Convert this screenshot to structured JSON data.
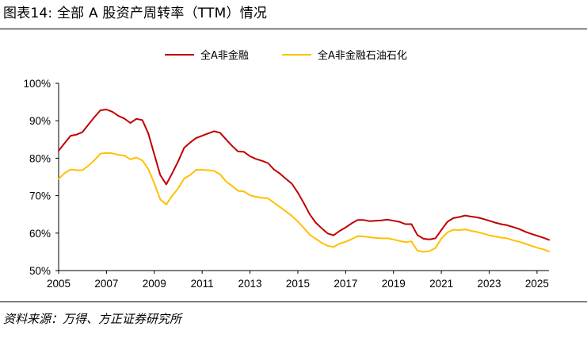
{
  "figure": {
    "title": "图表14: 全部 A 股资产周转率（TTM）情况",
    "source": "资料来源：万得、方正证券研究所"
  },
  "chart_data": {
    "type": "line",
    "title": "",
    "xlabel": "",
    "ylabel": "",
    "xlim": [
      2005,
      2025.5
    ],
    "ylim": [
      50,
      100
    ],
    "y_ticks": [
      "50%",
      "60%",
      "70%",
      "80%",
      "90%",
      "100%"
    ],
    "x_ticks": [
      "2005",
      "2007",
      "2009",
      "2011",
      "2013",
      "2015",
      "2017",
      "2019",
      "2021",
      "2023",
      "2025"
    ],
    "grid": false,
    "legend_position": "top-center",
    "series": [
      {
        "name": "全A非金融",
        "color": "#C00000",
        "x": [
          2005.0,
          2005.25,
          2005.5,
          2005.75,
          2006.0,
          2006.25,
          2006.5,
          2006.75,
          2007.0,
          2007.25,
          2007.5,
          2007.75,
          2008.0,
          2008.25,
          2008.5,
          2008.75,
          2009.0,
          2009.25,
          2009.5,
          2009.75,
          2010.0,
          2010.25,
          2010.5,
          2010.75,
          2011.0,
          2011.25,
          2011.5,
          2011.75,
          2012.0,
          2012.25,
          2012.5,
          2012.75,
          2013.0,
          2013.25,
          2013.5,
          2013.75,
          2014.0,
          2014.25,
          2014.5,
          2014.75,
          2015.0,
          2015.25,
          2015.5,
          2015.75,
          2016.0,
          2016.25,
          2016.5,
          2016.75,
          2017.0,
          2017.25,
          2017.5,
          2017.75,
          2018.0,
          2018.25,
          2018.5,
          2018.75,
          2019.0,
          2019.25,
          2019.5,
          2019.75,
          2020.0,
          2020.25,
          2020.5,
          2020.75,
          2021.0,
          2021.25,
          2021.5,
          2021.75,
          2022.0,
          2022.25,
          2022.5,
          2022.75,
          2023.0,
          2023.25,
          2023.5,
          2023.75,
          2024.0,
          2024.25,
          2024.5,
          2024.75,
          2025.0,
          2025.25,
          2025.5
        ],
        "values": [
          82.0,
          84.0,
          86.0,
          86.3,
          87.0,
          89.0,
          91.0,
          92.8,
          93.0,
          92.4,
          91.3,
          90.6,
          89.4,
          90.5,
          90.2,
          86.6,
          81.0,
          75.5,
          73.0,
          76.0,
          79.2,
          82.8,
          84.2,
          85.4,
          86.0,
          86.6,
          87.2,
          86.8,
          85.0,
          83.3,
          81.8,
          81.7,
          80.5,
          79.8,
          79.3,
          78.7,
          77.0,
          75.9,
          74.5,
          73.2,
          70.8,
          68.0,
          65.0,
          62.8,
          61.3,
          59.9,
          59.4,
          60.6,
          61.5,
          62.6,
          63.5,
          63.5,
          63.2,
          63.3,
          63.4,
          63.6,
          63.3,
          63.0,
          62.4,
          62.4,
          59.5,
          58.5,
          58.3,
          58.6,
          60.8,
          63.0,
          64.0,
          64.3,
          64.7,
          64.4,
          64.2,
          63.8,
          63.3,
          62.8,
          62.4,
          62.1,
          61.6,
          61.1,
          60.4,
          59.8,
          59.3,
          58.8,
          58.2
        ]
      },
      {
        "name": "全A非金融石油石化",
        "color": "#FFC000",
        "x": [
          2005.0,
          2005.25,
          2005.5,
          2005.75,
          2006.0,
          2006.25,
          2006.5,
          2006.75,
          2007.0,
          2007.25,
          2007.5,
          2007.75,
          2008.0,
          2008.25,
          2008.5,
          2008.75,
          2009.0,
          2009.25,
          2009.5,
          2009.75,
          2010.0,
          2010.25,
          2010.5,
          2010.75,
          2011.0,
          2011.25,
          2011.5,
          2011.75,
          2012.0,
          2012.25,
          2012.5,
          2012.75,
          2013.0,
          2013.25,
          2013.5,
          2013.75,
          2014.0,
          2014.25,
          2014.5,
          2014.75,
          2015.0,
          2015.25,
          2015.5,
          2015.75,
          2016.0,
          2016.25,
          2016.5,
          2016.75,
          2017.0,
          2017.25,
          2017.5,
          2017.75,
          2018.0,
          2018.25,
          2018.5,
          2018.75,
          2019.0,
          2019.25,
          2019.5,
          2019.75,
          2020.0,
          2020.25,
          2020.5,
          2020.75,
          2021.0,
          2021.25,
          2021.5,
          2021.75,
          2022.0,
          2022.25,
          2022.5,
          2022.75,
          2023.0,
          2023.25,
          2023.5,
          2023.75,
          2024.0,
          2024.25,
          2024.5,
          2024.75,
          2025.0,
          2025.25,
          2025.5
        ],
        "values": [
          74.5,
          76.0,
          77.0,
          76.8,
          76.8,
          78.0,
          79.5,
          81.2,
          81.4,
          81.3,
          80.9,
          80.7,
          79.7,
          80.2,
          79.4,
          77.1,
          73.3,
          69.0,
          67.6,
          70.0,
          72.0,
          74.6,
          75.5,
          76.9,
          76.9,
          76.8,
          76.6,
          75.7,
          73.8,
          72.6,
          71.3,
          71.1,
          70.1,
          69.7,
          69.4,
          69.3,
          68.1,
          67.0,
          65.8,
          64.6,
          63.1,
          61.4,
          59.6,
          58.5,
          57.4,
          56.6,
          56.3,
          57.2,
          57.7,
          58.4,
          59.2,
          59.1,
          58.9,
          58.7,
          58.6,
          58.6,
          58.3,
          57.9,
          57.6,
          57.8,
          55.3,
          55.0,
          55.2,
          56.0,
          58.5,
          60.2,
          60.9,
          60.8,
          61.0,
          60.6,
          60.3,
          59.9,
          59.4,
          59.1,
          58.8,
          58.6,
          58.1,
          57.7,
          57.2,
          56.6,
          56.1,
          55.7,
          55.1
        ]
      }
    ]
  }
}
